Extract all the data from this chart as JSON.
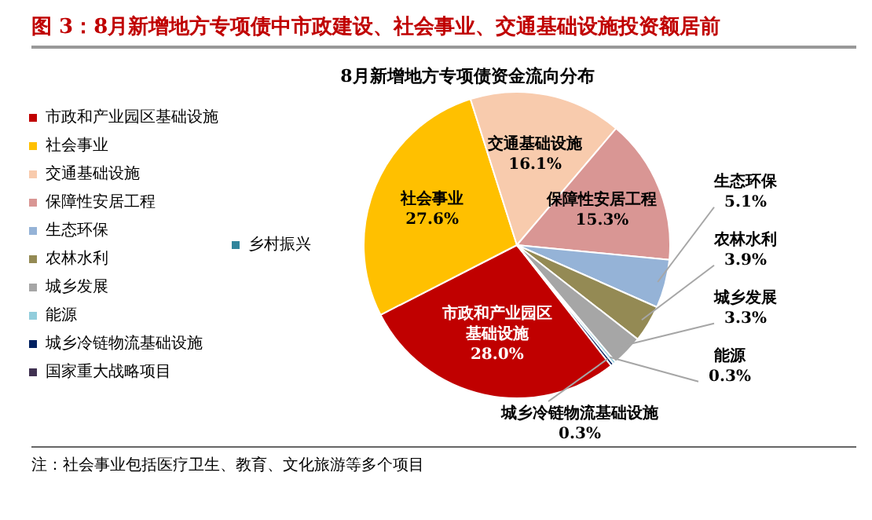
{
  "chart_data": {
    "type": "pie",
    "title": "图 3：8月新增地方专项债中市政建设、社会事业、交通基础设施投资额居前",
    "subtitle": "8月新增地方专项债资金流向分布",
    "categories": [
      "市政和产业园区基础设施",
      "社会事业",
      "交通基础设施",
      "保障性安居工程",
      "生态环保",
      "农林水利",
      "城乡发展",
      "能源",
      "城乡冷链物流基础设施",
      "国家重大战略项目",
      "乡村振兴"
    ],
    "values": [
      28.0,
      27.6,
      16.1,
      15.3,
      5.1,
      3.9,
      3.3,
      0.3,
      0.3,
      0,
      0
    ],
    "value_labels": [
      "28.0%",
      "27.6%",
      "16.1%",
      "15.3%",
      "5.1%",
      "3.9%",
      "3.3%",
      "0.3%",
      "0.3%",
      null,
      null
    ],
    "colors": [
      "#c00000",
      "#ffc000",
      "#f8cbad",
      "#d99694",
      "#95b3d7",
      "#948a54",
      "#a6a6a6",
      "#92cddc",
      "#002060",
      "#403151",
      "#31859c"
    ],
    "legend": "left",
    "annotations": [
      "注：社会事业包括医疗卫生、教育、文化旅游等多个项目"
    ]
  }
}
